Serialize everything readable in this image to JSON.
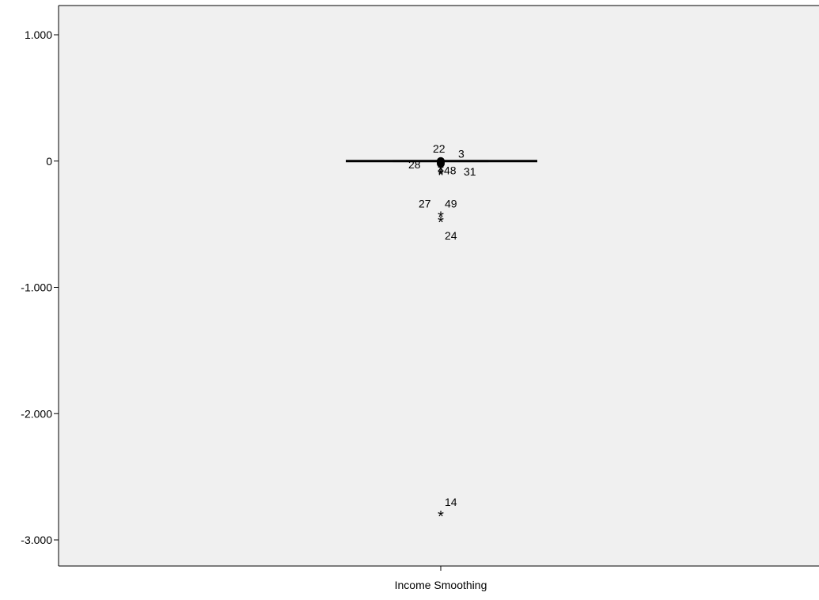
{
  "chart_data": {
    "type": "boxplot",
    "categories": [
      "Income Smoothing"
    ],
    "ylim": [
      -3.2,
      1.2
    ],
    "yticks": [
      {
        "value": 1,
        "label": "1.000"
      },
      {
        "value": 0,
        "label": "0"
      },
      {
        "value": -1,
        "label": "-1.000"
      },
      {
        "value": -2,
        "label": "-2.000"
      },
      {
        "value": -3,
        "label": "-3.000"
      }
    ],
    "grid": false,
    "colors": {
      "plot_background": "#f0f0f0",
      "box": "#000000",
      "marks": "#000000"
    },
    "box": {
      "category": "Income Smoothing",
      "median": 0,
      "q1": -0.005,
      "q3": 0.005,
      "whisker_low": -0.005,
      "whisker_high": 0.005
    },
    "outliers": [
      {
        "case": "22",
        "value": 0.0,
        "marker": "circle"
      },
      {
        "case": "3",
        "value": -0.01,
        "marker": "circle"
      },
      {
        "case": "28",
        "value": -0.02,
        "marker": "circle"
      },
      {
        "case": "48",
        "value": -0.06,
        "marker": "star"
      },
      {
        "case": "31",
        "value": -0.09,
        "marker": "star"
      },
      {
        "case": "27",
        "value": -0.1,
        "marker": "star"
      },
      {
        "case": "49",
        "value": -0.43,
        "marker": "star"
      },
      {
        "case": "24",
        "value": -0.47,
        "marker": "star"
      },
      {
        "case": "14",
        "value": -2.8,
        "marker": "star"
      }
    ]
  }
}
